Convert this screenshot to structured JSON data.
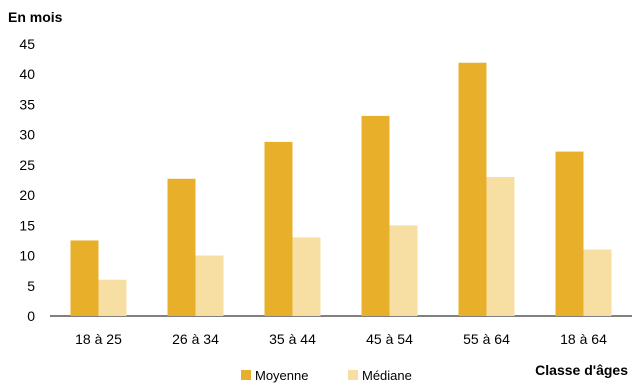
{
  "chart_data": {
    "type": "bar",
    "ylabel": "En mois",
    "xlabel": "Classe d'âges",
    "categories": [
      "18 à 25",
      "26 à 34",
      "35 à 44",
      "45 à 54",
      "55 à 64",
      "18 à 64"
    ],
    "series": [
      {
        "name": "Moyenne",
        "values": [
          12.5,
          22.7,
          28.8,
          33.1,
          41.9,
          27.2
        ],
        "color": "#E8B02A"
      },
      {
        "name": "Médiane",
        "values": [
          6,
          10,
          13,
          15,
          23,
          11
        ],
        "color": "#F7DFA4"
      }
    ],
    "ylim": [
      0,
      45
    ],
    "yticks": [
      0,
      5,
      10,
      15,
      20,
      25,
      30,
      35,
      40,
      45
    ],
    "grid": false,
    "legend": "bottom"
  }
}
